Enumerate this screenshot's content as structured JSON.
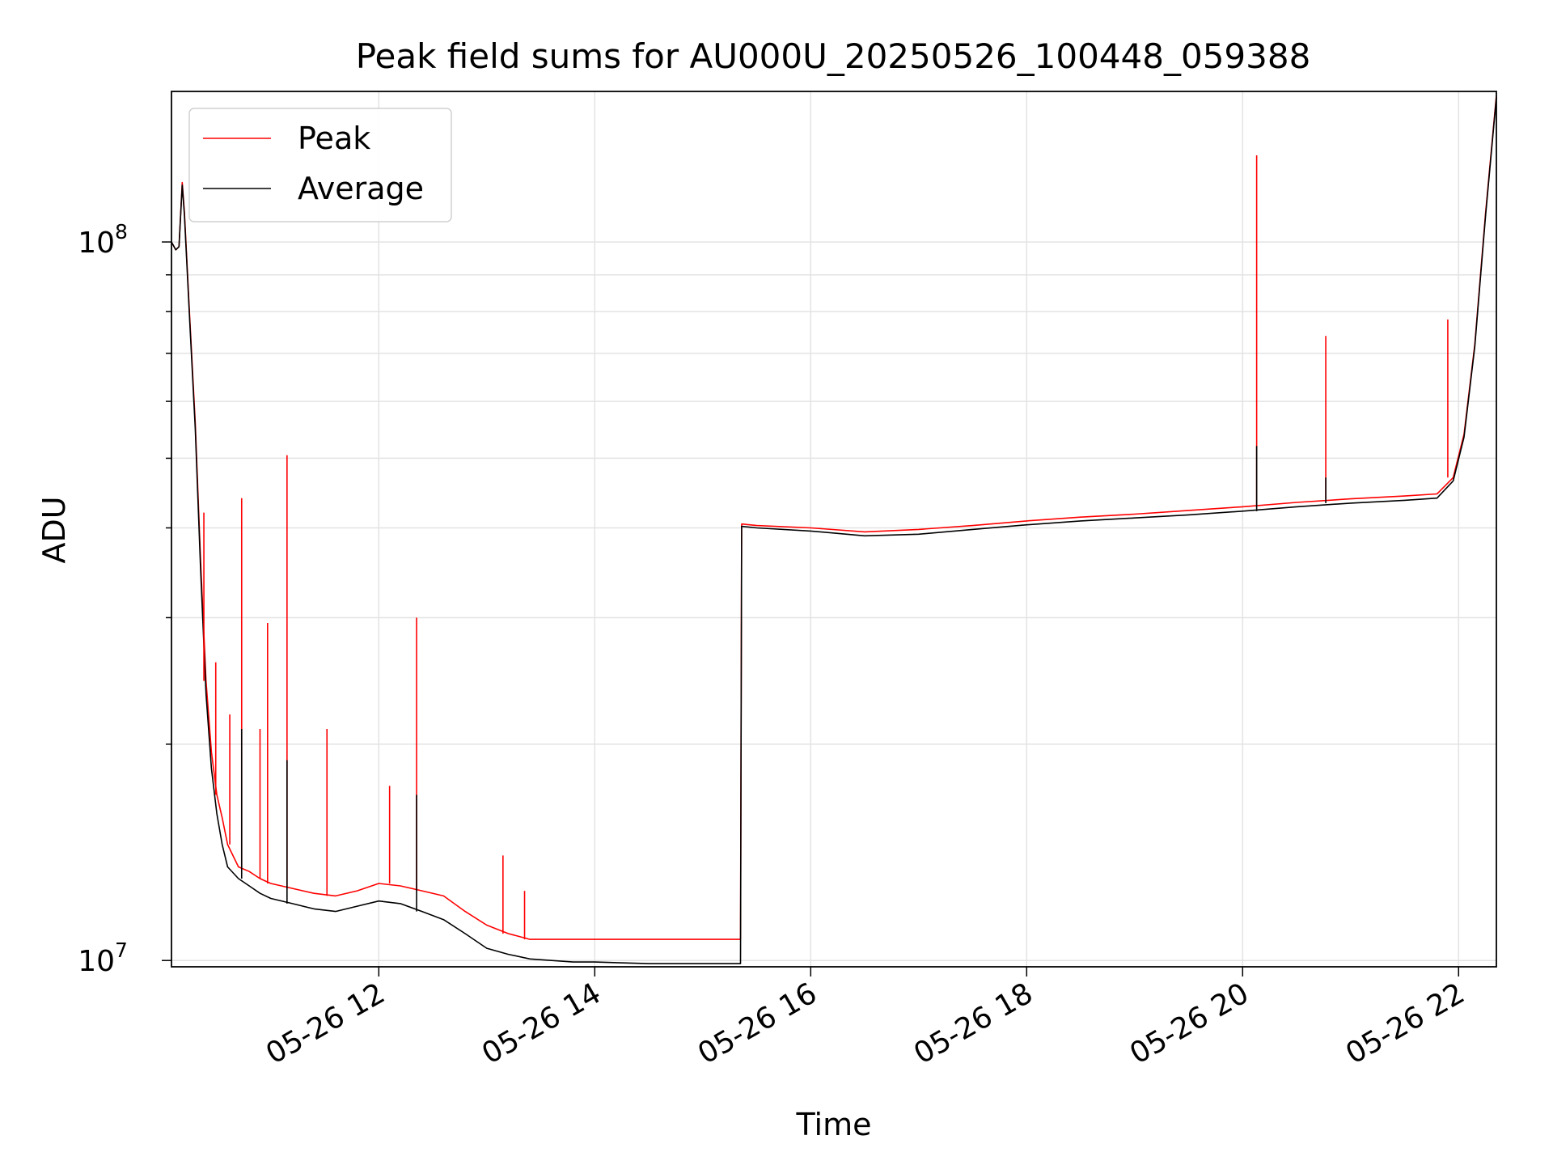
{
  "chart_data": {
    "type": "line",
    "title": "Peak field sums for AU000U_20250526_100448_059388",
    "xlabel": "Time",
    "ylabel": "ADU",
    "y_scale": "log",
    "ylim": [
      9800000,
      162000000
    ],
    "xlim_hours": [
      10.08,
      22.35
    ],
    "x_ticks": [
      {
        "value": 12,
        "label": "05-26 12"
      },
      {
        "value": 14,
        "label": "05-26 14"
      },
      {
        "value": 16,
        "label": "05-26 16"
      },
      {
        "value": 18,
        "label": "05-26 18"
      },
      {
        "value": 20,
        "label": "05-26 20"
      },
      {
        "value": 22,
        "label": "05-26 22"
      }
    ],
    "y_major_ticks": [
      {
        "value": 10000000,
        "base": "10",
        "exp": "7"
      },
      {
        "value": 100000000,
        "base": "10",
        "exp": "8"
      }
    ],
    "y_minor_ticks": [
      20000000,
      30000000,
      40000000,
      50000000,
      60000000,
      70000000,
      80000000,
      90000000
    ],
    "grid": true,
    "legend_position": "top-left",
    "series": [
      {
        "name": "Peak",
        "color": "#ff0000",
        "x": [
          10.08,
          10.12,
          10.15,
          10.18,
          10.2,
          10.25,
          10.3,
          10.35,
          10.4,
          10.45,
          10.5,
          10.55,
          10.6,
          10.7,
          10.8,
          10.9,
          11.0,
          11.2,
          11.4,
          11.6,
          11.8,
          12.0,
          12.2,
          12.4,
          12.6,
          12.8,
          13.0,
          13.2,
          13.4,
          13.6,
          13.8,
          14.0,
          14.5,
          15.0,
          15.35,
          15.36,
          15.5,
          16.0,
          16.5,
          17.0,
          17.5,
          18.0,
          18.5,
          19.0,
          19.5,
          20.0,
          20.5,
          21.0,
          21.5,
          21.8,
          21.95,
          22.05,
          22.15,
          22.25,
          22.35
        ],
        "values": [
          100000000,
          97500000,
          98500000,
          121000000,
          110000000,
          78000000,
          56000000,
          36000000,
          24500000,
          19500000,
          17000000,
          15800000,
          14500000,
          13500000,
          13300000,
          13000000,
          12800000,
          12600000,
          12400000,
          12300000,
          12500000,
          12800000,
          12700000,
          12500000,
          12300000,
          11700000,
          11200000,
          10900000,
          10700000,
          10700000,
          10700000,
          10700000,
          10700000,
          10700000,
          10700000,
          40500000,
          40300000,
          40000000,
          39500000,
          39800000,
          40300000,
          40900000,
          41400000,
          41800000,
          42300000,
          42800000,
          43400000,
          43900000,
          44300000,
          44600000,
          47000000,
          54000000,
          72000000,
          110000000,
          160000000
        ]
      },
      {
        "name": "Average",
        "color": "#000000",
        "x": [
          10.08,
          10.12,
          10.15,
          10.18,
          10.2,
          10.25,
          10.3,
          10.35,
          10.4,
          10.45,
          10.5,
          10.55,
          10.6,
          10.7,
          10.8,
          10.9,
          11.0,
          11.2,
          11.4,
          11.6,
          11.8,
          12.0,
          12.2,
          12.4,
          12.6,
          12.8,
          13.0,
          13.2,
          13.4,
          13.6,
          13.8,
          14.0,
          14.5,
          15.0,
          15.35,
          15.36,
          15.5,
          16.0,
          16.5,
          17.0,
          17.5,
          18.0,
          18.5,
          19.0,
          19.5,
          20.0,
          20.5,
          21.0,
          21.5,
          21.8,
          21.95,
          22.05,
          22.15,
          22.25,
          22.35
        ],
        "values": [
          100000000,
          97500000,
          98500000,
          120000000,
          109000000,
          77000000,
          55000000,
          35000000,
          23500000,
          18500000,
          16000000,
          14500000,
          13500000,
          13000000,
          12700000,
          12400000,
          12200000,
          12000000,
          11800000,
          11700000,
          11900000,
          12100000,
          12000000,
          11700000,
          11400000,
          10900000,
          10400000,
          10200000,
          10050000,
          10000000,
          9950000,
          9950000,
          9900000,
          9900000,
          9900000,
          40200000,
          40000000,
          39600000,
          39000000,
          39200000,
          39800000,
          40400000,
          40900000,
          41300000,
          41700000,
          42200000,
          42800000,
          43300000,
          43700000,
          44000000,
          46500000,
          53500000,
          71500000,
          109000000,
          159000000
        ]
      }
    ],
    "peak_spikes": [
      {
        "x": 10.38,
        "value": 42000000
      },
      {
        "x": 10.49,
        "value": 26000000
      },
      {
        "x": 10.62,
        "value": 22000000
      },
      {
        "x": 10.73,
        "value": 44000000
      },
      {
        "x": 10.9,
        "value": 21000000
      },
      {
        "x": 10.97,
        "value": 29500000
      },
      {
        "x": 11.15,
        "value": 50500000
      },
      {
        "x": 11.52,
        "value": 21000000
      },
      {
        "x": 12.1,
        "value": 17500000
      },
      {
        "x": 12.35,
        "value": 30000000
      },
      {
        "x": 13.15,
        "value": 14000000
      },
      {
        "x": 13.35,
        "value": 12500000
      },
      {
        "x": 20.13,
        "value": 132000000
      },
      {
        "x": 20.77,
        "value": 74000000
      },
      {
        "x": 21.9,
        "value": 78000000
      }
    ],
    "average_spikes": [
      {
        "x": 10.73,
        "value": 21000000
      },
      {
        "x": 11.15,
        "value": 19000000
      },
      {
        "x": 12.35,
        "value": 17000000
      },
      {
        "x": 20.13,
        "value": 52000000
      },
      {
        "x": 20.77,
        "value": 47000000
      }
    ]
  }
}
